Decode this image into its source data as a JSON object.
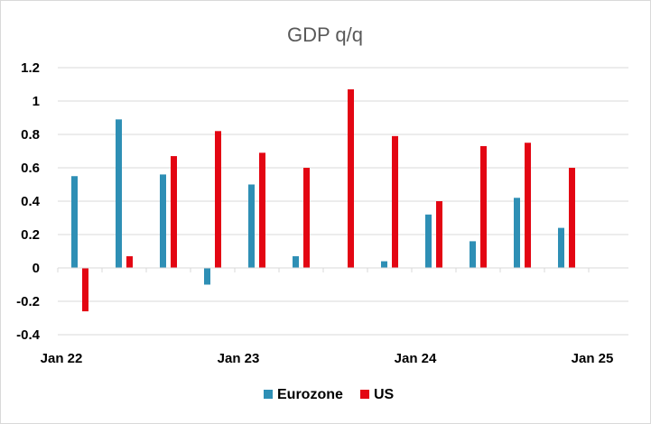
{
  "chart_data": {
    "type": "bar",
    "title": "GDP q/q",
    "xlabel": "",
    "ylabel": "",
    "ylim": [
      -0.4,
      1.2
    ],
    "yticks": [
      "1.2",
      "1",
      "0.8",
      "0.6",
      "0.4",
      "0.2",
      "0",
      "-0.2",
      "-0.4"
    ],
    "ytick_values": [
      1.2,
      1.0,
      0.8,
      0.6,
      0.4,
      0.2,
      0,
      -0.2,
      -0.4
    ],
    "categories": [
      "Q1 2022",
      "Q2 2022",
      "Q3 2022",
      "Q4 2022",
      "Q1 2023",
      "Q2 2023",
      "Q3 2023",
      "Q4 2023",
      "Q1 2024",
      "Q2 2024",
      "Q3 2024",
      "Q4 2024"
    ],
    "xtick_labels": [
      {
        "label": "Jan 22",
        "category_index": 0
      },
      {
        "label": "Jan 23",
        "category_index": 4
      },
      {
        "label": "Jan 24",
        "category_index": 8
      },
      {
        "label": "Jan 25",
        "category_index": 12
      }
    ],
    "series": [
      {
        "name": "Eurozone",
        "color": "#2e8fb5",
        "values": [
          0.55,
          0.89,
          0.56,
          -0.1,
          0.5,
          0.07,
          null,
          0.04,
          0.32,
          0.16,
          0.42,
          0.24
        ]
      },
      {
        "name": "US",
        "color": "#e30613",
        "values": [
          -0.26,
          0.07,
          0.67,
          0.82,
          0.69,
          0.6,
          1.07,
          0.79,
          0.4,
          0.73,
          0.75,
          0.6
        ]
      }
    ],
    "grid": "horizontal",
    "legend_position": "bottom"
  }
}
